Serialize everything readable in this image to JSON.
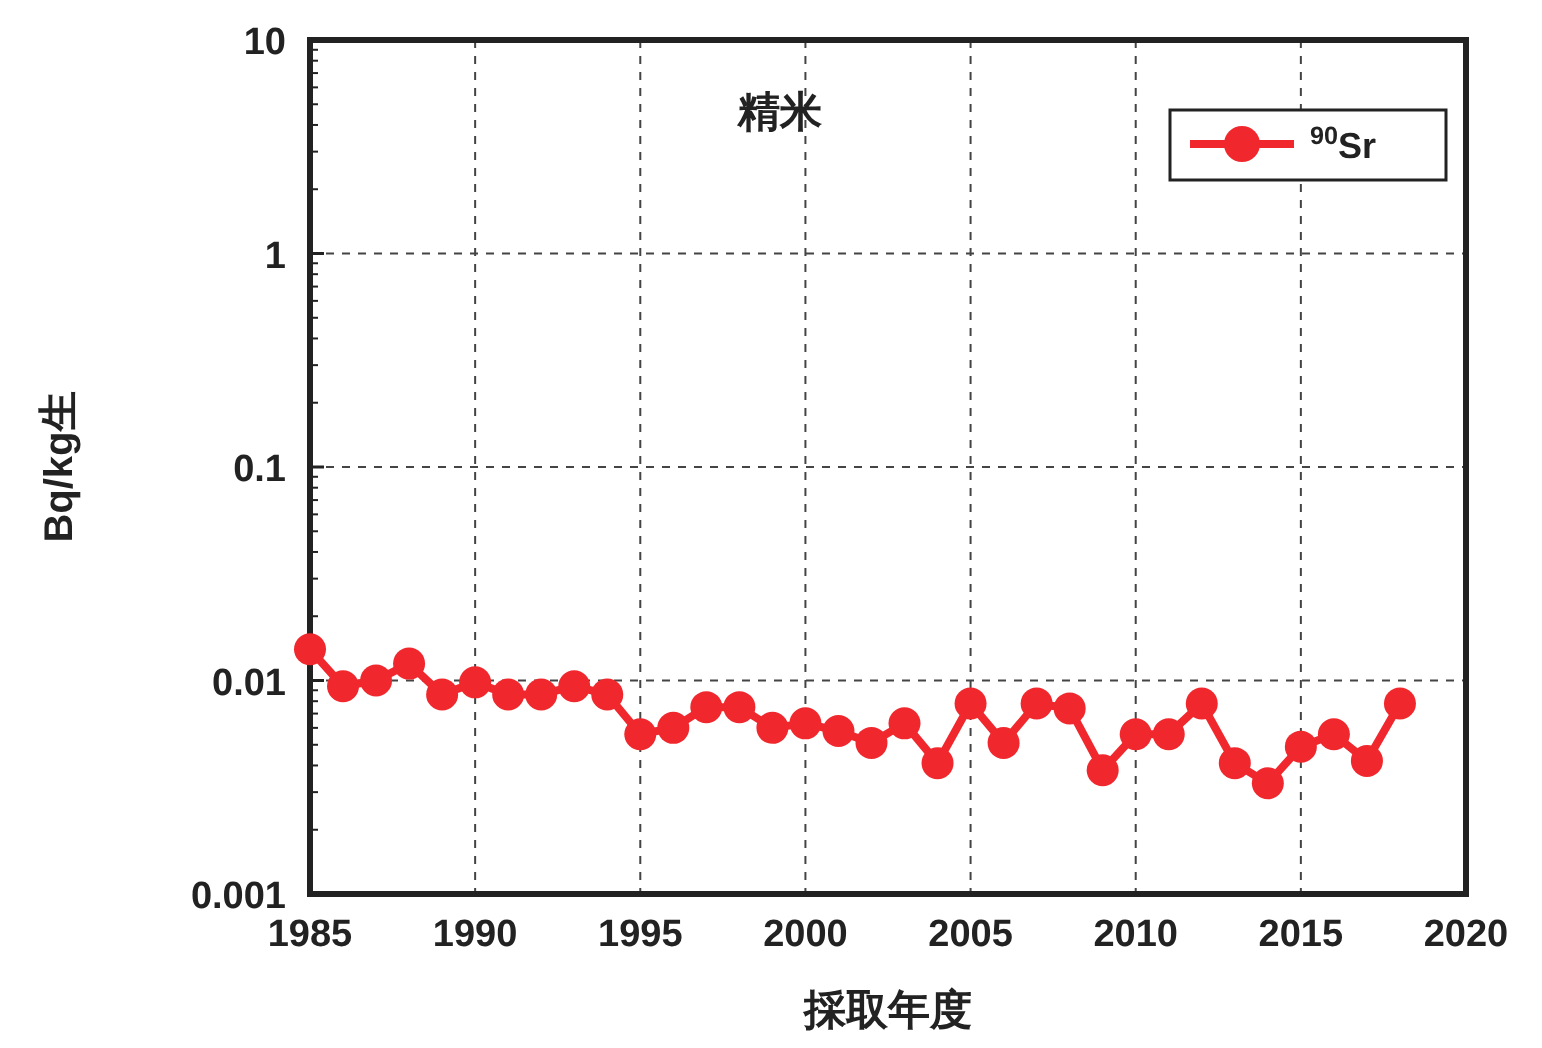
{
  "chart_data": {
    "type": "line",
    "title": "精米",
    "xlabel": "採取年度",
    "ylabel": "Bq/kg生",
    "x": [
      1985,
      1986,
      1987,
      1988,
      1989,
      1990,
      1991,
      1992,
      1993,
      1994,
      1995,
      1996,
      1997,
      1998,
      1999,
      2000,
      2001,
      2002,
      2003,
      2004,
      2005,
      2006,
      2007,
      2008,
      2009,
      2010,
      2011,
      2012,
      2013,
      2014,
      2015,
      2016,
      2017,
      2018
    ],
    "series": [
      {
        "name": "$^{90}$Sr",
        "color": "#f0282d",
        "values": [
          0.014,
          0.0094,
          0.01,
          0.012,
          0.0086,
          0.0098,
          0.0086,
          0.0086,
          0.0094,
          0.0086,
          0.0056,
          0.006,
          0.0075,
          0.0075,
          0.006,
          0.0063,
          0.0058,
          0.0051,
          0.0063,
          0.0041,
          0.0078,
          0.0051,
          0.0078,
          0.0074,
          0.0038,
          0.0056,
          0.0056,
          0.0078,
          0.0041,
          0.0033,
          0.0049,
          0.0056,
          0.0042,
          0.0078
        ]
      }
    ],
    "log": "y",
    "xlim": [
      1985,
      2020
    ],
    "ylim": [
      0.001,
      10
    ],
    "xticks": [
      1985,
      1990,
      1995,
      2000,
      2005,
      2010,
      2015,
      2020
    ],
    "yticks": [
      0.001,
      0.01,
      0.1,
      1,
      10
    ],
    "grid": true,
    "legend": "top right",
    "marker": "circle",
    "line_style": "solid"
  }
}
